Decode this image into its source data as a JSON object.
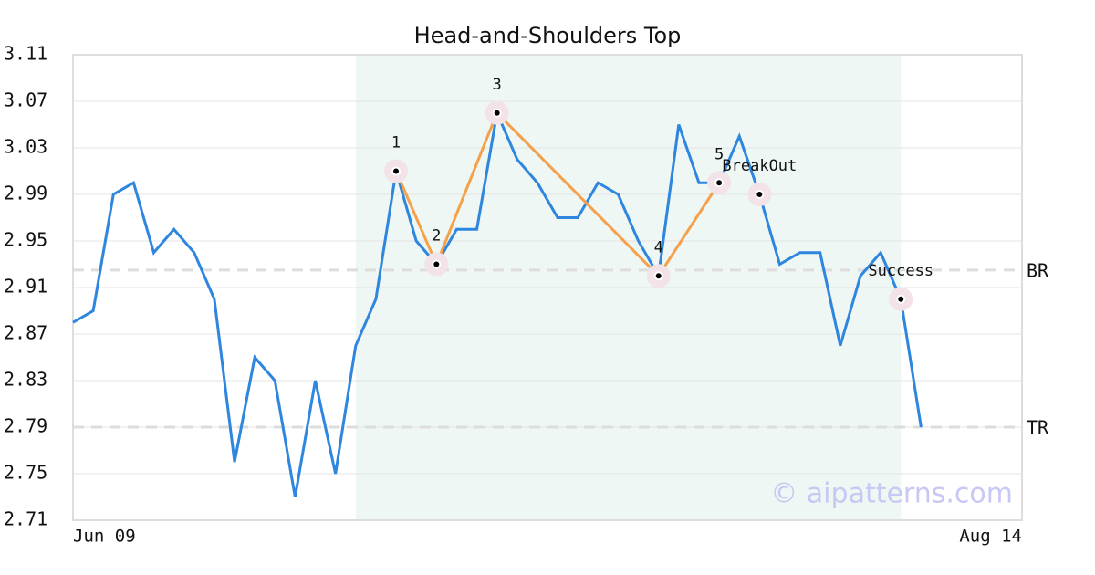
{
  "chart_data": {
    "type": "line",
    "title": "Head-and-Shoulders Top",
    "x": [
      0,
      1,
      2,
      3,
      4,
      5,
      6,
      7,
      8,
      9,
      10,
      11,
      12,
      13,
      14,
      15,
      16,
      17,
      18,
      19,
      20,
      21,
      22,
      23,
      24,
      25,
      26,
      27,
      28,
      29,
      30,
      31,
      32,
      33,
      34,
      35,
      36,
      37,
      38,
      39,
      40,
      41,
      42
    ],
    "values": [
      2.88,
      2.89,
      2.99,
      3.0,
      2.94,
      2.96,
      2.94,
      2.9,
      2.76,
      2.85,
      2.83,
      2.73,
      2.83,
      2.75,
      2.86,
      2.9,
      3.01,
      2.95,
      2.93,
      2.96,
      2.96,
      3.06,
      3.02,
      3.0,
      2.97,
      2.97,
      3.0,
      2.99,
      2.95,
      2.92,
      3.05,
      3.0,
      3.0,
      3.04,
      2.99,
      2.93,
      2.94,
      2.94,
      2.86,
      2.92,
      2.94,
      2.9,
      2.79
    ],
    "color": "#2e86de",
    "xlim": [
      0,
      47
    ],
    "xticks": [
      {
        "value": 0,
        "label": "Jun 09"
      },
      {
        "value": 47,
        "label": "Aug 14"
      }
    ],
    "ylim": [
      2.71,
      3.11
    ],
    "yticks": [
      2.71,
      2.75,
      2.79,
      2.83,
      2.87,
      2.91,
      2.95,
      2.99,
      3.03,
      3.07,
      3.11
    ],
    "grid": true,
    "highlight": {
      "x": [
        14,
        41
      ],
      "color": "#eef7f3"
    },
    "pattern": {
      "color": "#f5a04a",
      "points": [
        {
          "label": "1",
          "x": 16,
          "y": 3.01
        },
        {
          "label": "2",
          "x": 18,
          "y": 2.93
        },
        {
          "label": "3",
          "x": 21,
          "y": 3.06
        },
        {
          "label": "4",
          "x": 29,
          "y": 2.92
        },
        {
          "label": "5",
          "x": 32,
          "y": 3.0
        }
      ]
    },
    "markers": [
      {
        "label": "BreakOut",
        "x": 34,
        "y": 2.99
      },
      {
        "label": "Success",
        "x": 41,
        "y": 2.9
      }
    ],
    "levels": [
      {
        "label": "BR",
        "value": 2.925
      },
      {
        "label": "TR",
        "value": 2.79
      }
    ],
    "watermark": "© aipatterns.com"
  }
}
